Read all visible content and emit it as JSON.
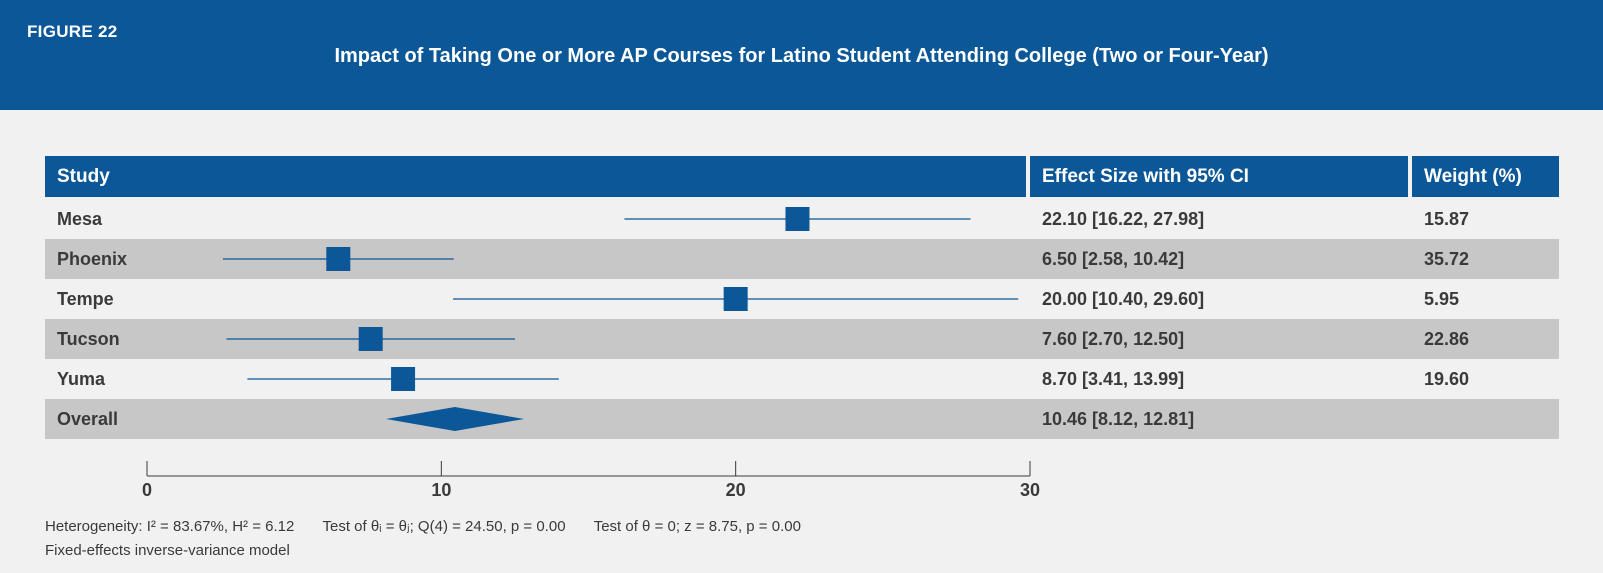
{
  "figure_label": "FIGURE 22",
  "title": "Impact of Taking One or More AP Courses for Latino Student Attending College (Two or Four-Year)",
  "columns": {
    "study": "Study",
    "effect": "Effect Size with 95% CI",
    "weight": "Weight (%)"
  },
  "rows": [
    {
      "study": "Mesa",
      "effect_text": "22.10 [16.22, 27.98]",
      "weight": "15.87"
    },
    {
      "study": "Phoenix",
      "effect_text": "6.50 [2.58, 10.42]",
      "weight": "35.72"
    },
    {
      "study": "Tempe",
      "effect_text": "20.00 [10.40, 29.60]",
      "weight": "5.95"
    },
    {
      "study": "Tucson",
      "effect_text": "7.60 [2.70, 12.50]",
      "weight": "22.86"
    },
    {
      "study": "Yuma",
      "effect_text": "8.70 [3.41, 13.99]",
      "weight": "19.60"
    },
    {
      "study": "Overall",
      "effect_text": "10.46 [8.12, 12.81]",
      "weight": ""
    }
  ],
  "footnotes": {
    "heterogeneity": "Heterogeneity: I² = 83.67%, H² = 6.12",
    "test_equal": "Test of θᵢ = θⱼ; Q(4) = 24.50, p = 0.00",
    "test_zero": "Test of θ = 0; z = 8.75, p = 0.00",
    "model": "Fixed-effects inverse-variance model"
  },
  "colors": {
    "primary": "#0b5797",
    "alt_row": "#c7c7c8",
    "background": "#f1f1f1"
  },
  "chart_data": {
    "type": "forest",
    "xlim": [
      0,
      30
    ],
    "xticks": [
      0,
      10,
      20,
      30
    ],
    "studies": [
      {
        "name": "Mesa",
        "estimate": 22.1,
        "ci_low": 16.22,
        "ci_high": 27.98,
        "weight": 15.87
      },
      {
        "name": "Phoenix",
        "estimate": 6.5,
        "ci_low": 2.58,
        "ci_high": 10.42,
        "weight": 35.72
      },
      {
        "name": "Tempe",
        "estimate": 20.0,
        "ci_low": 10.4,
        "ci_high": 29.6,
        "weight": 5.95
      },
      {
        "name": "Tucson",
        "estimate": 7.6,
        "ci_low": 2.7,
        "ci_high": 12.5,
        "weight": 22.86
      },
      {
        "name": "Yuma",
        "estimate": 8.7,
        "ci_low": 3.41,
        "ci_high": 13.99,
        "weight": 19.6
      }
    ],
    "overall": {
      "name": "Overall",
      "estimate": 10.46,
      "ci_low": 8.12,
      "ci_high": 12.81
    }
  }
}
